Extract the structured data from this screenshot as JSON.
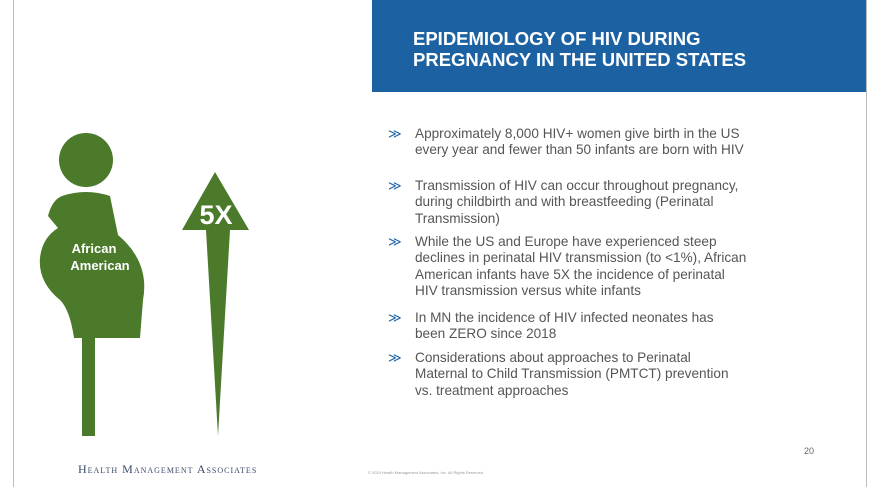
{
  "title": {
    "lines": [
      "EPIDEMIOLOGY OF HIV DURING",
      "PREGNANCY IN THE UNITED STATES"
    ]
  },
  "graphic": {
    "figure_label": [
      "African",
      "American"
    ],
    "arrow_label": "5X"
  },
  "bullets": [
    {
      "marker": "≫",
      "lines": [
        "Approximately 8,000 HIV+ women give birth in the US",
        "every year and fewer than 50 infants are born with HIV"
      ]
    },
    {
      "marker": "≫",
      "lines": [
        "Transmission of HIV can occur throughout pregnancy,",
        "during childbirth and with breastfeeding  (Perinatal",
        "Transmission)"
      ]
    },
    {
      "marker": "≫",
      "lines": [
        "While the US and Europe have experienced steep",
        "declines in perinatal HIV transmission (to <1%), African",
        "American infants have 5X the incidence of perinatal",
        "HIV transmission versus white infants"
      ]
    },
    {
      "marker": "≫",
      "lines": [
        "In MN the incidence of HIV infected neonates has",
        "been ZERO since 2018"
      ]
    },
    {
      "marker": "≫",
      "lines": [
        "Considerations about approaches to Perinatal",
        "Maternal to Child Transmission (PMTCT) prevention",
        "vs. treatment approaches"
      ]
    }
  ],
  "footer": {
    "org": "Health Management Associates",
    "copyright": "© 2024 Health Management Associates, Inc. All Rights Reserved.",
    "page": "20"
  }
}
